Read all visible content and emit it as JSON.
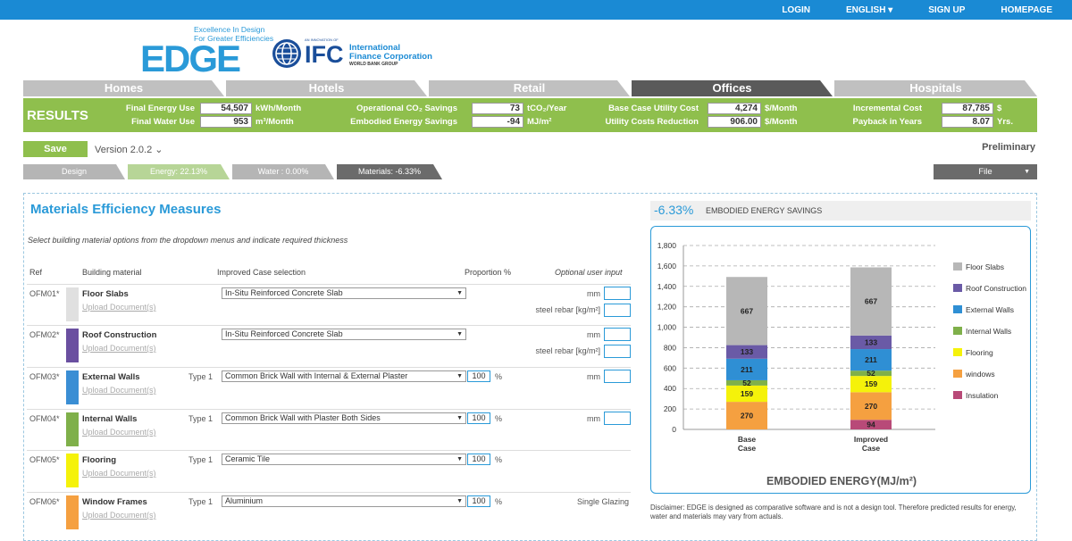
{
  "topnav": {
    "login": "LOGIN",
    "language": "ENGLISH",
    "signup": "SIGN UP",
    "homepage": "HOMEPAGE"
  },
  "logo": {
    "edge": "EDGE",
    "tagline1": "Excellence In Design",
    "tagline2": "For Greater Efficiencies",
    "ifc_small": "AN INNOVATION OF",
    "ifc": "IFC",
    "ifc_name1": "International",
    "ifc_name2": "Finance Corporation",
    "ifc_wb": "WORLD BANK GROUP"
  },
  "tabs": [
    "Homes",
    "Hotels",
    "Retail",
    "Offices",
    "Hospitals"
  ],
  "results": {
    "label": "RESULTS",
    "final_energy_label": "Final Energy Use",
    "final_energy": "54,507",
    "final_energy_unit": "kWh/Month",
    "final_water_label": "Final Water Use",
    "final_water": "953",
    "final_water_unit": "m³/Month",
    "co2_label": "Operational CO₂ Savings",
    "co2": "73",
    "co2_unit": "tCO₂/Year",
    "embodied_label": "Embodied Energy Savings",
    "embodied": "-94",
    "embodied_unit": "MJ/m²",
    "base_cost_label": "Base Case Utility Cost",
    "base_cost": "4,274",
    "base_cost_unit": "$/Month",
    "reduction_label": "Utility Costs Reduction",
    "reduction": "906.00",
    "reduction_unit": "$/Month",
    "incr_label": "Incremental Cost",
    "incr": "87,785",
    "incr_unit": "$",
    "payback_label": "Payback in Years",
    "payback": "8.07",
    "payback_unit": "Yrs."
  },
  "toolbar": {
    "save": "Save",
    "version": "Version 2.0.2",
    "preliminary": "Preliminary",
    "file": "File"
  },
  "steps": [
    "Design",
    "Energy: 22.13%",
    "Water : 0.00%",
    "Materials: -6.33%"
  ],
  "materials": {
    "title": "Materials Efficiency Measures",
    "subtitle": "Select building material options from the dropdown menus and indicate required thickness",
    "headers": {
      "ref": "Ref",
      "material": "Building material",
      "improved": "Improved Case selection",
      "proportion": "Proportion %",
      "optional": "Optional user input"
    },
    "rows": [
      {
        "ref": "OFM01*",
        "name": "Floor Slabs",
        "upload": "Upload Document(s)",
        "type": "",
        "selection": "In-Situ Reinforced Concrete Slab",
        "prop": "",
        "u1": "mm",
        "u2": "steel rebar [kg/m²]",
        "color": "#e0e0e0"
      },
      {
        "ref": "OFM02*",
        "name": "Roof Construction",
        "upload": "Upload Document(s)",
        "type": "",
        "selection": "In-Situ Reinforced Concrete Slab",
        "prop": "",
        "u1": "mm",
        "u2": "steel rebar [kg/m²]",
        "color": "#6a4fa0"
      },
      {
        "ref": "OFM03*",
        "name": "External Walls",
        "upload": "Upload Document(s)",
        "type": "Type 1",
        "selection": "Common Brick Wall with Internal & External Plaster",
        "prop": "100",
        "pct": "%",
        "u1": "mm",
        "u2": "",
        "color": "#3a8ed4"
      },
      {
        "ref": "OFM04*",
        "name": "Internal Walls",
        "upload": "Upload Document(s)",
        "type": "Type 1",
        "selection": "Common Brick Wall with Plaster Both Sides",
        "prop": "100",
        "pct": "%",
        "u1": "mm",
        "u2": "",
        "color": "#7fb04a"
      },
      {
        "ref": "OFM05*",
        "name": "Flooring",
        "upload": "Upload Document(s)",
        "type": "Type 1",
        "selection": "Ceramic Tile",
        "prop": "100",
        "pct": "%",
        "u1": "",
        "u2": "",
        "color": "#f5f20a"
      },
      {
        "ref": "OFM06*",
        "name": "Window Frames",
        "upload": "Upload Document(s)",
        "type": "Type 1",
        "selection": "Aluminium",
        "prop": "100",
        "pct": "%",
        "u1": "Single Glazing",
        "u2": "",
        "color": "#f5a040"
      }
    ]
  },
  "savings": {
    "value": "-6.33%",
    "label": "EMBODIED ENERGY SAVINGS"
  },
  "chart_data": {
    "type": "bar",
    "stacked": true,
    "categories": [
      "Base\nCase",
      "Improved\nCase"
    ],
    "title": "EMBODIED ENERGY(MJ/m²)",
    "ylim": [
      0,
      1800
    ],
    "yticks": [
      "0",
      "200",
      "400",
      "600",
      "800",
      "1,000",
      "1,200",
      "1,400",
      "1,600",
      "1,800"
    ],
    "series": [
      {
        "name": "Floor Slabs",
        "color": "#b7b7b7",
        "values": [
          667,
          667
        ]
      },
      {
        "name": "Roof Construction",
        "color": "#6a5aa6",
        "values": [
          133,
          133
        ]
      },
      {
        "name": "External Walls",
        "color": "#2f8fd4",
        "values": [
          211,
          211
        ]
      },
      {
        "name": "Internal Walls",
        "color": "#7fb04a",
        "values": [
          52,
          52
        ]
      },
      {
        "name": "Flooring",
        "color": "#f5f20a",
        "values": [
          159,
          159
        ]
      },
      {
        "name": "windows",
        "color": "#f5a040",
        "values": [
          270,
          270
        ]
      },
      {
        "name": "Insulation",
        "color": "#b84a78",
        "values": [
          0,
          94
        ]
      }
    ]
  },
  "disclaimer": "Disclaimer: EDGE is designed as comparative software and is not a design tool. Therefore predicted results for energy, water and materials may vary from actuals."
}
